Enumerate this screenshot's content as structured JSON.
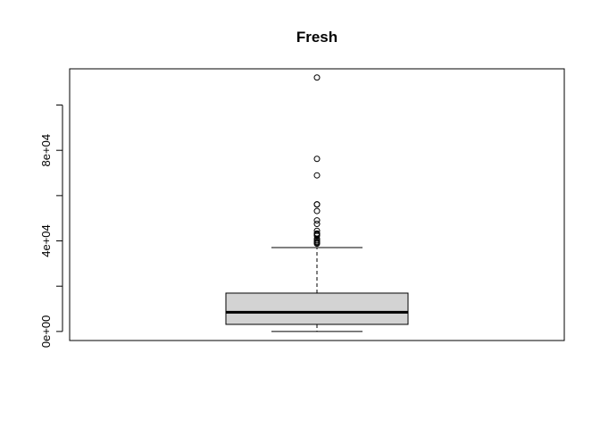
{
  "chart_data": {
    "type": "boxplot",
    "title": "Fresh",
    "xlabel": "",
    "ylabel": "",
    "ylim": [
      -4000,
      116000
    ],
    "y_ticks": [
      0,
      20000,
      40000,
      60000,
      80000,
      100000
    ],
    "y_tick_labels": [
      "0e+00",
      "",
      "4e+04",
      "",
      "8e+04",
      ""
    ],
    "box": {
      "min": 3,
      "q1": 3128,
      "median": 8504,
      "q3": 16934,
      "whisker_high": 37036,
      "outliers": [
        112151,
        76237,
        68951,
        56159,
        56083,
        53205,
        49063,
        47493,
        44466,
        43265,
        43088,
        42786,
        42312,
        41009,
        40254,
        39679,
        39228,
        38791
      ]
    },
    "box_fill": "#d3d3d3",
    "grid": false,
    "legend": "none"
  }
}
